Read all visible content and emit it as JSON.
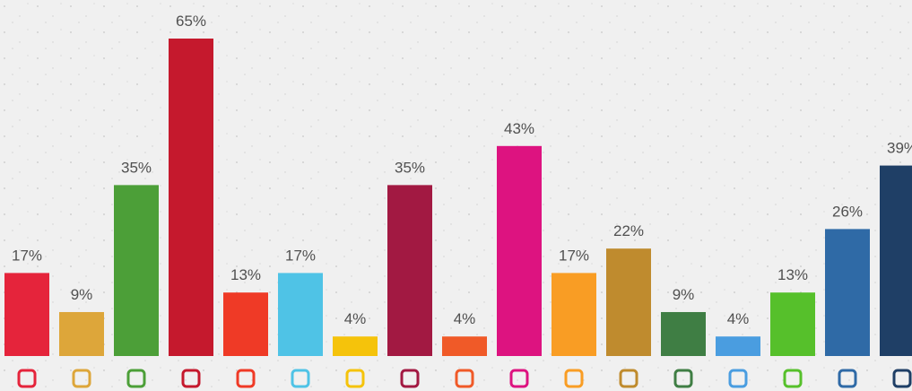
{
  "chart_data": {
    "type": "bar",
    "categories": [
      null,
      null,
      null,
      null,
      null,
      null,
      null,
      null,
      null,
      null,
      null,
      null,
      null,
      null,
      null,
      null,
      null
    ],
    "values": [
      17,
      9,
      35,
      65,
      13,
      17,
      4,
      35,
      4,
      43,
      17,
      22,
      9,
      4,
      13,
      26,
      39
    ],
    "value_labels": [
      "17%",
      "9%",
      "35%",
      "65%",
      "13%",
      "17%",
      "4%",
      "35%",
      "4%",
      "43%",
      "17%",
      "22%",
      "9%",
      "4%",
      "13%",
      "26%",
      "39%"
    ],
    "colors": [
      "#e5243b",
      "#dda63a",
      "#4c9f38",
      "#c5192d",
      "#ef3a26",
      "#4fc3e6",
      "#f5c30b",
      "#a21942",
      "#f05a28",
      "#dd1380",
      "#f99d24",
      "#bf8b2e",
      "#3f7e44",
      "#4a9de0",
      "#56c02b",
      "#2f6aa6",
      "#1f3f66"
    ]
  }
}
